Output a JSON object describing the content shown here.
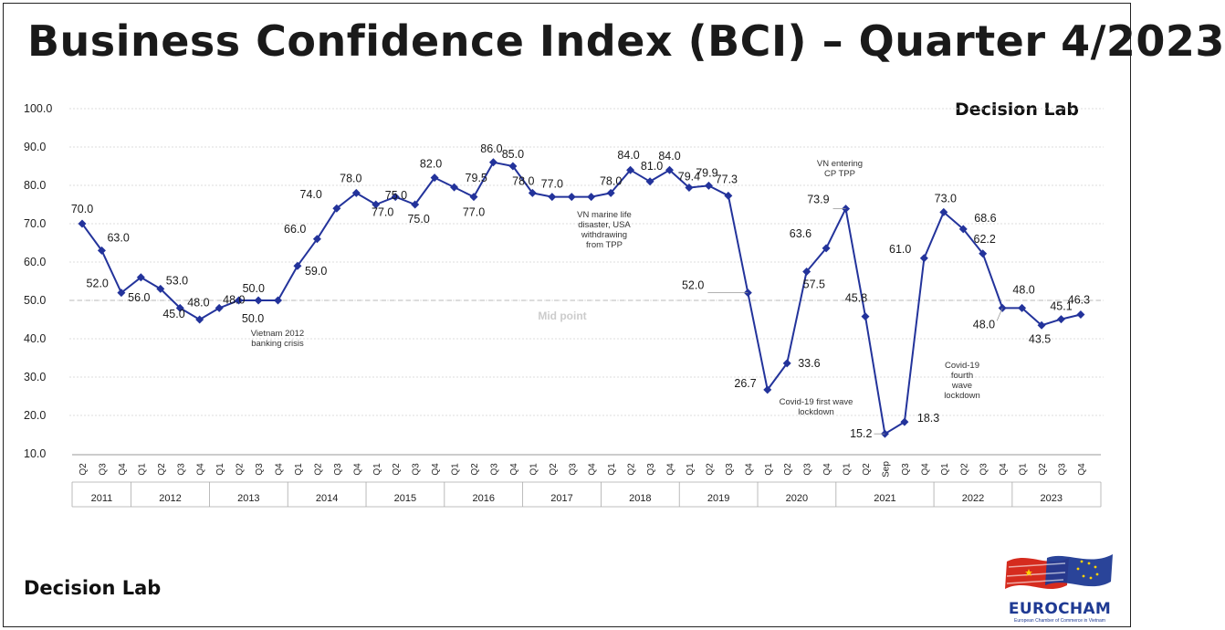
{
  "page": {
    "title": "Business Confidence Index (BCI) – Quarter 4/2023",
    "brand_top": "Decision Lab",
    "brand_bottom": "Decision Lab",
    "logo_name": "EUROCHAM",
    "logo_sub": "European Chamber of Commerce in Vietnam"
  },
  "chart_data": {
    "type": "line",
    "ylim": [
      10,
      100
    ],
    "yticks": [
      "10.0",
      "20.0",
      "30.0",
      "40.0",
      "50.0",
      "60.0",
      "70.0",
      "80.0",
      "90.0",
      "100.0"
    ],
    "grid": true,
    "series_color": "#23339b",
    "midpoint": {
      "value": 50,
      "label": "Mid point"
    },
    "periods": [
      {
        "q": "Q2",
        "v": 70.0,
        "lbl": "70.0"
      },
      {
        "q": "Q3",
        "v": 63.0,
        "lbl": "63.0"
      },
      {
        "q": "Q4",
        "v": 52.0,
        "lbl": "52.0"
      },
      {
        "q": "Q1",
        "v": 56.0,
        "lbl": "56.0"
      },
      {
        "q": "Q2",
        "v": 53.0,
        "lbl": "53.0"
      },
      {
        "q": "Q3",
        "v": 48.0,
        "lbl": "48.0"
      },
      {
        "q": "Q4",
        "v": 45.0,
        "lbl": "45.0"
      },
      {
        "q": "Q1",
        "v": 48.0,
        "lbl": "48.0"
      },
      {
        "q": "Q2",
        "v": 50.0,
        "lbl": "50.0"
      },
      {
        "q": "Q3",
        "v": 50.0,
        "lbl": "50.0"
      },
      {
        "q": "Q4",
        "v": 50.0,
        "lbl": ""
      },
      {
        "q": "Q1",
        "v": 59.0,
        "lbl": "59.0"
      },
      {
        "q": "Q2",
        "v": 66.0,
        "lbl": "66.0"
      },
      {
        "q": "Q3",
        "v": 74.0,
        "lbl": "74.0"
      },
      {
        "q": "Q4",
        "v": 78.0,
        "lbl": "78.0"
      },
      {
        "q": "Q1",
        "v": 75.0,
        "lbl": "75.0"
      },
      {
        "q": "Q2",
        "v": 77.0,
        "lbl": "77.0"
      },
      {
        "q": "Q3",
        "v": 75.0,
        "lbl": "75.0"
      },
      {
        "q": "Q4",
        "v": 82.0,
        "lbl": "82.0"
      },
      {
        "q": "Q1",
        "v": 79.5,
        "lbl": "79.5"
      },
      {
        "q": "Q2",
        "v": 77.0,
        "lbl": "77.0"
      },
      {
        "q": "Q3",
        "v": 86.0,
        "lbl": "86.0"
      },
      {
        "q": "Q4",
        "v": 85.0,
        "lbl": "85.0"
      },
      {
        "q": "Q1",
        "v": 78.0,
        "lbl": "78.0"
      },
      {
        "q": "Q2",
        "v": 77.0,
        "lbl": "77.0"
      },
      {
        "q": "Q3",
        "v": 77.0,
        "lbl": ""
      },
      {
        "q": "Q4",
        "v": 77.0,
        "lbl": ""
      },
      {
        "q": "Q1",
        "v": 78.0,
        "lbl": "78.0"
      },
      {
        "q": "Q2",
        "v": 84.0,
        "lbl": "84.0"
      },
      {
        "q": "Q3",
        "v": 81.0,
        "lbl": "81.0"
      },
      {
        "q": "Q4",
        "v": 84.0,
        "lbl": "84.0"
      },
      {
        "q": "Q1",
        "v": 79.4,
        "lbl": "79.4"
      },
      {
        "q": "Q2",
        "v": 79.9,
        "lbl": "79.9"
      },
      {
        "q": "Q3",
        "v": 77.3,
        "lbl": "77.3"
      },
      {
        "q": "Q4",
        "v": 52.0,
        "lbl": "52.0"
      },
      {
        "q": "Q1",
        "v": 26.7,
        "lbl": "26.7"
      },
      {
        "q": "Q2",
        "v": 33.6,
        "lbl": "33.6"
      },
      {
        "q": "Q3",
        "v": 57.5,
        "lbl": "57.5"
      },
      {
        "q": "Q4",
        "v": 63.6,
        "lbl": "63.6"
      },
      {
        "q": "Q1",
        "v": 73.9,
        "lbl": "73.9"
      },
      {
        "q": "Q2",
        "v": 45.8,
        "lbl": "45.8"
      },
      {
        "q": "Sep",
        "v": 15.2,
        "lbl": "15.2"
      },
      {
        "q": "Q3",
        "v": 18.3,
        "lbl": "18.3"
      },
      {
        "q": "Q4",
        "v": 61.0,
        "lbl": "61.0"
      },
      {
        "q": "Q1",
        "v": 73.0,
        "lbl": "73.0"
      },
      {
        "q": "Q2",
        "v": 68.6,
        "lbl": "68.6"
      },
      {
        "q": "Q3",
        "v": 62.2,
        "lbl": "62.2"
      },
      {
        "q": "Q4",
        "v": 48.0,
        "lbl": "48.0"
      },
      {
        "q": "Q1",
        "v": 48.0,
        "lbl": "48.0"
      },
      {
        "q": "Q2",
        "v": 43.5,
        "lbl": "43.5"
      },
      {
        "q": "Q3",
        "v": 45.1,
        "lbl": "45.1"
      },
      {
        "q": "Q4",
        "v": 46.3,
        "lbl": "46.3"
      }
    ],
    "years": [
      {
        "year": "2011",
        "count": 3
      },
      {
        "year": "2012",
        "count": 4
      },
      {
        "year": "2013",
        "count": 4
      },
      {
        "year": "2014",
        "count": 4
      },
      {
        "year": "2015",
        "count": 4
      },
      {
        "year": "2016",
        "count": 4
      },
      {
        "year": "2017",
        "count": 4
      },
      {
        "year": "2018",
        "count": 4
      },
      {
        "year": "2019",
        "count": 4
      },
      {
        "year": "2020",
        "count": 4
      },
      {
        "year": "2021",
        "count": 5
      },
      {
        "year": "2022",
        "count": 4
      },
      {
        "year": "2023",
        "count": 4
      }
    ],
    "annotations": [
      {
        "point": 10,
        "text": [
          "Vietnam 2012",
          "banking crisis"
        ]
      },
      {
        "point": 26,
        "text": [
          "VN marine life",
          "disaster, USA",
          "withdrawing",
          "from TPP"
        ]
      },
      {
        "point": 39,
        "text": [
          "VN entering",
          "CP TPP"
        ]
      },
      {
        "point": 35,
        "text": [
          "Covid-19 first wave",
          "lockdown"
        ]
      },
      {
        "point": 47,
        "text": [
          "Covid-19",
          "fourth",
          "wave",
          "lockdown"
        ]
      }
    ]
  }
}
